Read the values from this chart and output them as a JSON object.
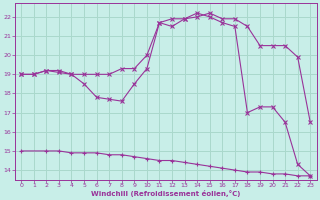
{
  "bg_color": "#c8eee8",
  "line_color": "#993399",
  "grid_color": "#aad8cc",
  "xlabel": "Windchill (Refroidissement éolien,°C)",
  "xlabel_color": "#993399",
  "tick_color": "#993399",
  "spine_color": "#993399",
  "xlim": [
    -0.5,
    23.5
  ],
  "ylim": [
    13.5,
    22.7
  ],
  "yticks": [
    14,
    15,
    16,
    17,
    18,
    19,
    20,
    21,
    22
  ],
  "xticks": [
    0,
    1,
    2,
    3,
    4,
    5,
    6,
    7,
    8,
    9,
    10,
    11,
    12,
    13,
    14,
    15,
    16,
    17,
    18,
    19,
    20,
    21,
    22,
    23
  ],
  "line1_x": [
    0,
    1,
    2,
    3,
    4,
    5,
    6,
    7,
    8,
    9,
    10,
    11,
    12,
    13,
    14,
    15,
    16,
    17,
    18,
    19,
    20,
    21,
    22,
    23
  ],
  "line1_y": [
    19.0,
    19.0,
    19.2,
    19.2,
    19.0,
    19.0,
    19.0,
    19.0,
    19.3,
    19.3,
    20.0,
    21.7,
    21.9,
    21.9,
    22.0,
    22.2,
    21.9,
    21.9,
    21.5,
    20.5,
    20.5,
    20.5,
    19.9,
    16.5
  ],
  "line2_x": [
    0,
    2,
    3,
    4,
    5,
    6,
    7,
    8,
    9,
    10,
    11,
    12,
    13,
    14,
    15,
    16,
    17,
    18,
    19,
    20,
    21,
    22,
    23
  ],
  "line2_y": [
    15.0,
    15.0,
    15.0,
    14.9,
    14.9,
    14.9,
    14.8,
    14.8,
    14.7,
    14.6,
    14.5,
    14.5,
    14.4,
    14.3,
    14.2,
    14.1,
    14.0,
    13.9,
    13.9,
    13.8,
    13.8,
    13.7,
    13.7
  ],
  "line3_x": [
    0,
    1,
    2,
    3,
    4,
    5,
    6,
    7,
    8,
    9,
    10,
    11,
    12,
    13,
    14,
    15,
    16,
    17,
    18,
    19,
    20,
    21,
    22,
    23
  ],
  "line3_y": [
    19.0,
    19.0,
    19.2,
    19.1,
    19.0,
    18.5,
    17.8,
    17.7,
    17.6,
    18.5,
    19.3,
    21.7,
    21.5,
    21.9,
    22.2,
    22.0,
    21.7,
    21.5,
    17.0,
    17.3,
    17.3,
    16.5,
    14.3,
    13.7
  ]
}
